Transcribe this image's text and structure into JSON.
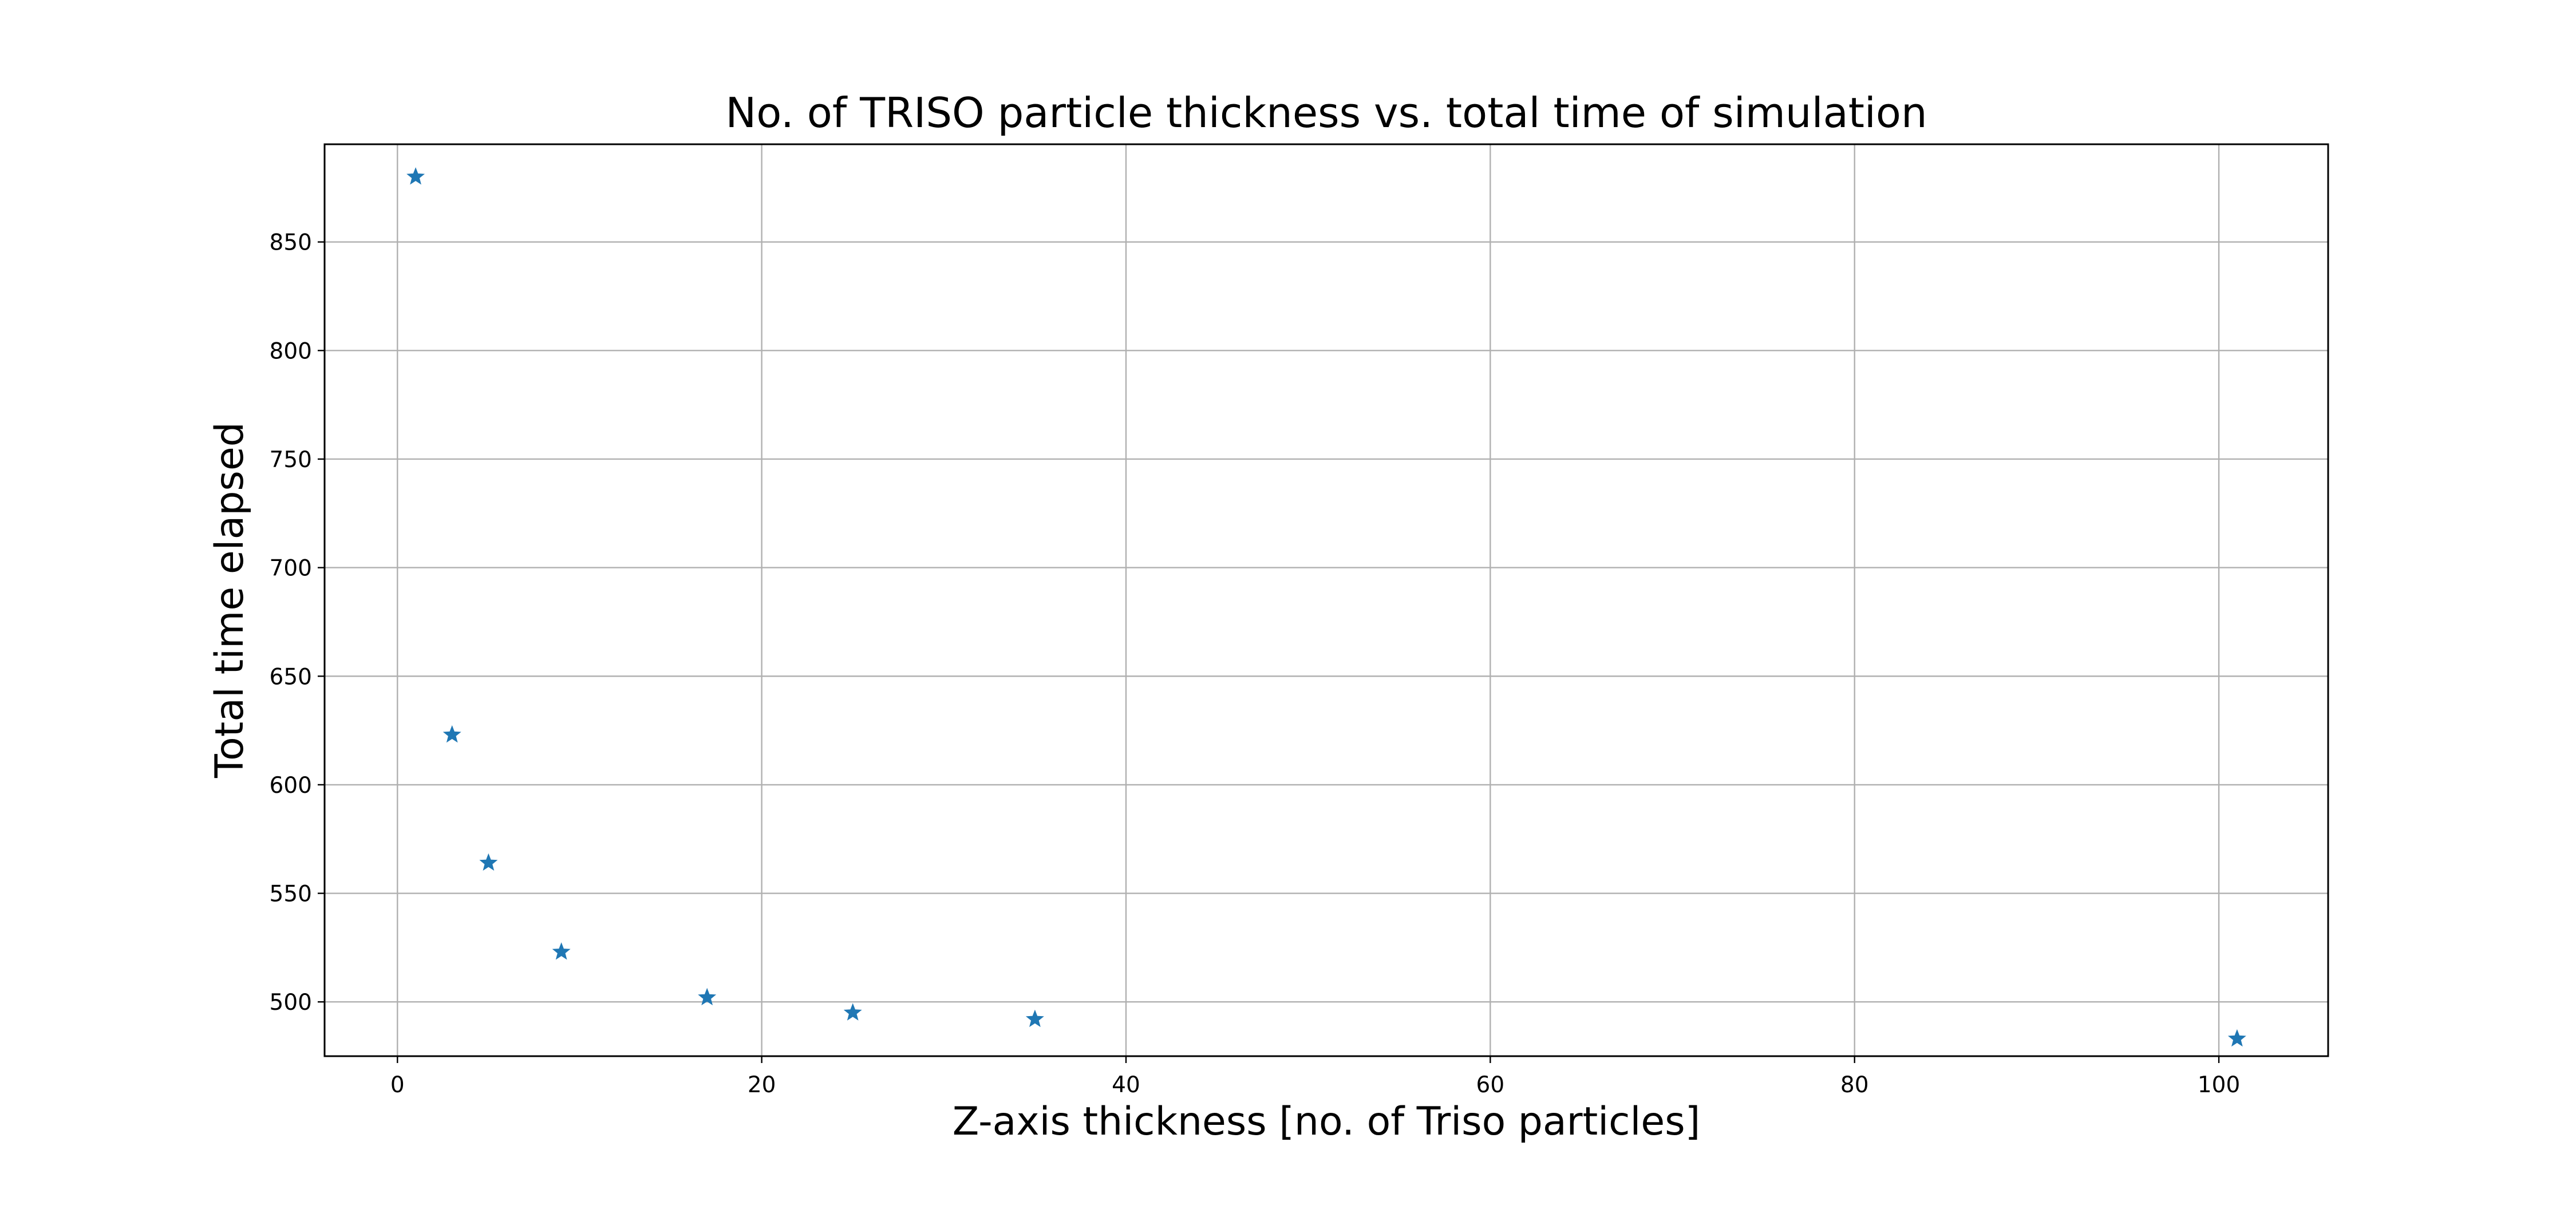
{
  "chart_data": {
    "type": "scatter",
    "title": "No. of TRISO particle thickness vs. total time of simulation",
    "xlabel": "Z-axis thickness [no. of Triso particles]",
    "ylabel": "Total time elapsed",
    "xlim": [
      -4,
      106
    ],
    "ylim": [
      475,
      895
    ],
    "xticks": [
      0,
      20,
      40,
      60,
      80,
      100
    ],
    "xtick_labels": [
      "0",
      "20",
      "40",
      "60",
      "80",
      "100"
    ],
    "yticks": [
      500,
      550,
      600,
      650,
      700,
      750,
      800,
      850
    ],
    "ytick_labels": [
      "500",
      "550",
      "600",
      "650",
      "700",
      "750",
      "800",
      "850"
    ],
    "grid": true,
    "marker": "star",
    "series": [
      {
        "name": "Total time elapsed",
        "color": "#1f77b4",
        "x": [
          1,
          3,
          5,
          9,
          17,
          25,
          35,
          101
        ],
        "y": [
          880,
          623,
          564,
          523,
          502,
          495,
          492,
          483
        ]
      }
    ]
  }
}
